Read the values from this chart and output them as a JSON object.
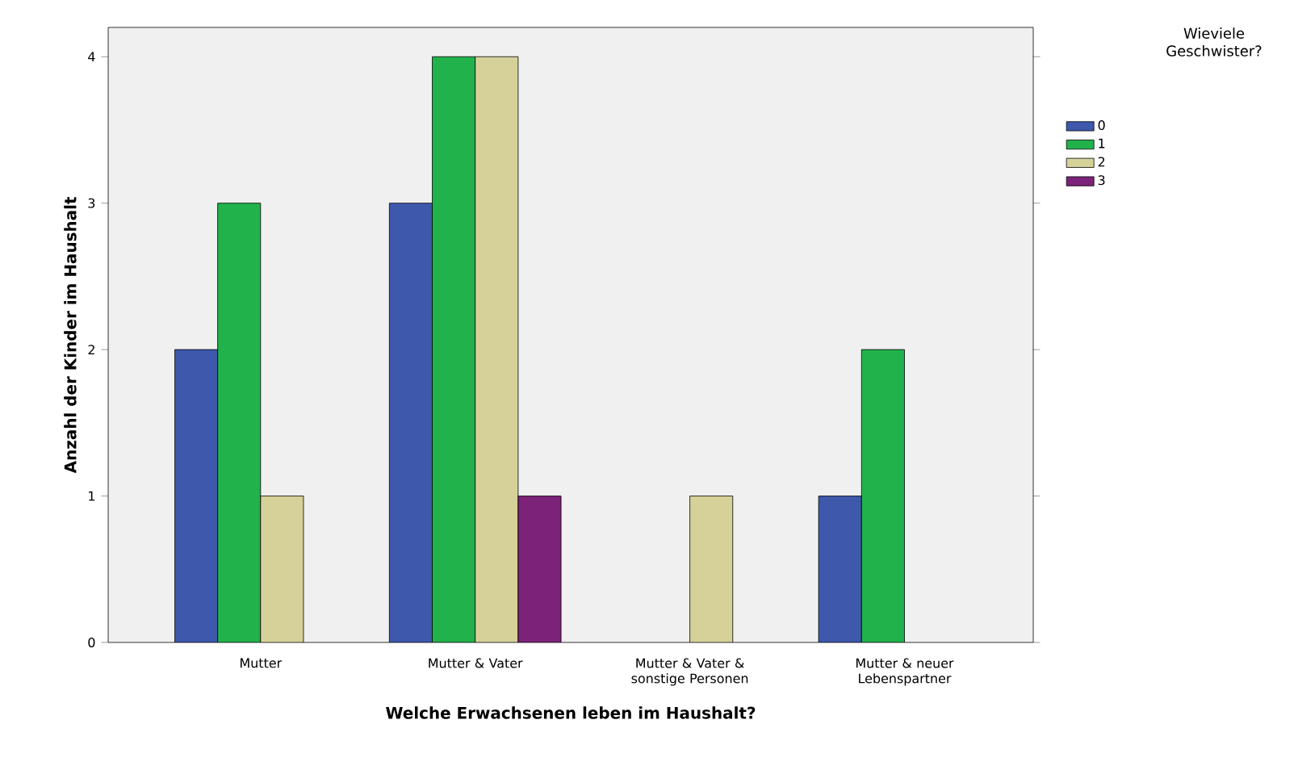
{
  "chart_data": {
    "type": "bar",
    "xlabel": "Welche Erwachsenen leben im Haushalt?",
    "ylabel": "Anzahl der Kinder im Haushalt",
    "legend_title": "Wieviele Geschwister?",
    "categories": [
      "Mutter",
      "Mutter & Vater",
      "Mutter & Vater & sonstige Personen",
      "Mutter & neuer Lebenspartner"
    ],
    "series": [
      {
        "name": "0",
        "color": "#3e58ac",
        "values": [
          2,
          3,
          null,
          1
        ]
      },
      {
        "name": "1",
        "color": "#21b24b",
        "values": [
          3,
          4,
          null,
          2
        ]
      },
      {
        "name": "2",
        "color": "#d5d199",
        "values": [
          1,
          4,
          1,
          null
        ]
      },
      {
        "name": "3",
        "color": "#7c2379",
        "values": [
          null,
          1,
          null,
          null
        ]
      }
    ],
    "ylim": [
      0,
      4.2
    ],
    "yticks": [
      0,
      1,
      2,
      3,
      4
    ],
    "grid": false,
    "legend": "right"
  }
}
